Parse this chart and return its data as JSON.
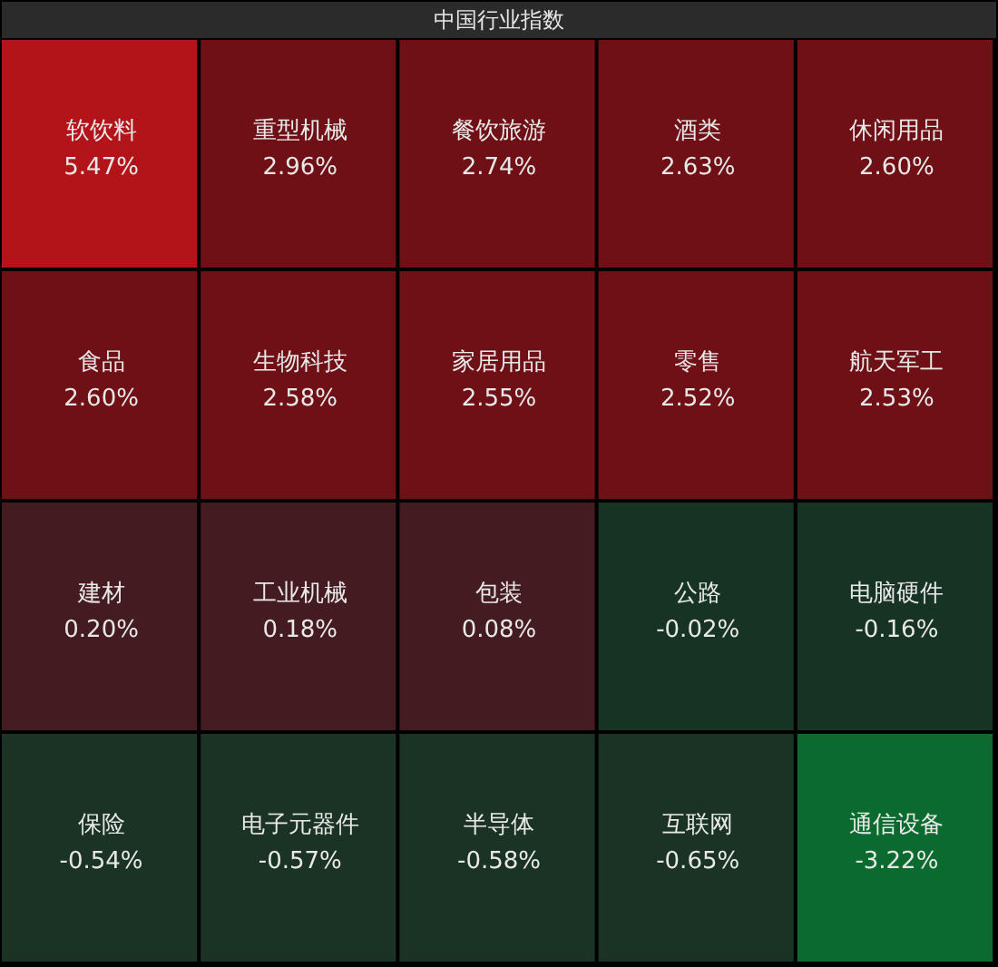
{
  "chart_data": {
    "type": "other",
    "title": "中国行业指数",
    "categories": [
      "软饮料",
      "重型机械",
      "餐饮旅游",
      "酒类",
      "休闲用品",
      "食品",
      "生物科技",
      "家居用品",
      "零售",
      "航天军工",
      "建材",
      "工业机械",
      "包装",
      "公路",
      "电脑硬件",
      "保险",
      "电子元器件",
      "半导体",
      "互联网",
      "通信设备"
    ],
    "values": [
      5.47,
      2.96,
      2.74,
      2.63,
      2.6,
      2.6,
      2.58,
      2.55,
      2.52,
      2.53,
      0.2,
      0.18,
      0.08,
      -0.02,
      -0.16,
      -0.54,
      -0.57,
      -0.58,
      -0.65,
      -3.22
    ],
    "value_labels": [
      "5.47%",
      "2.96%",
      "2.74%",
      "2.63%",
      "2.60%",
      "2.60%",
      "2.58%",
      "2.55%",
      "2.52%",
      "2.53%",
      "0.20%",
      "0.18%",
      "0.08%",
      "-0.02%",
      "-0.16%",
      "-0.54%",
      "-0.57%",
      "-0.58%",
      "-0.65%",
      "-3.22%"
    ],
    "colors": [
      "#b3141a",
      "#6e1016",
      "#6e1016",
      "#6e1016",
      "#6e1016",
      "#6e1016",
      "#6e1016",
      "#6e1016",
      "#6e1016",
      "#6e1016",
      "#431b20",
      "#431b20",
      "#431b20",
      "#173323",
      "#173323",
      "#1a3325",
      "#1a3325",
      "#1a3325",
      "#1a3325",
      "#0b6b2e"
    ]
  }
}
